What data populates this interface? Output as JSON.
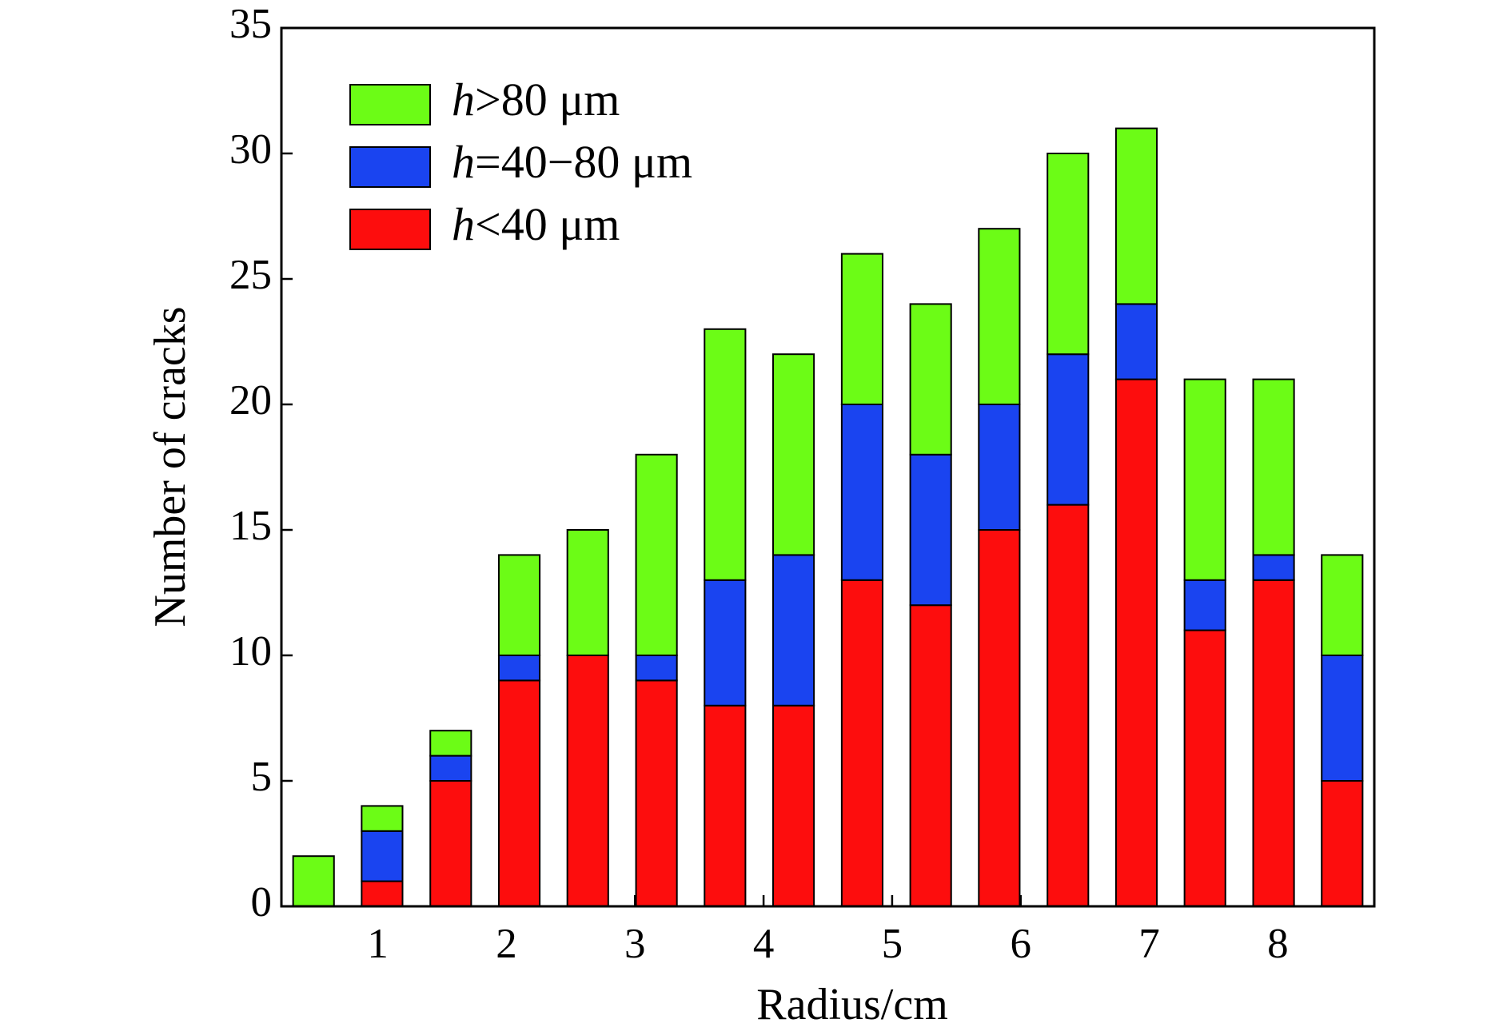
{
  "chart_data": {
    "type": "bar",
    "stacked": true,
    "x_label": "Radius/cm",
    "y_label": "Number of cracks",
    "x": [
      0.5,
      1.033,
      1.567,
      2.1,
      2.633,
      3.167,
      3.7,
      4.233,
      4.767,
      5.3,
      5.833,
      6.367,
      6.9,
      7.433,
      7.967,
      8.5
    ],
    "series": [
      {
        "name": "h>80 μm",
        "color": "#6cfc16",
        "values": [
          2,
          1,
          1,
          4,
          5,
          8,
          10,
          8,
          6,
          6,
          7,
          8,
          7,
          8,
          7,
          4
        ]
      },
      {
        "name": "h=40−80 μm",
        "color": "#1a44f0",
        "values": [
          0,
          2,
          1,
          1,
          0,
          1,
          5,
          6,
          7,
          6,
          5,
          6,
          3,
          2,
          1,
          5
        ]
      },
      {
        "name": "h<40 μm",
        "color": "#fd0d0d",
        "values": [
          0,
          1,
          5,
          9,
          10,
          9,
          8,
          8,
          13,
          12,
          15,
          16,
          21,
          11,
          13,
          5
        ]
      }
    ],
    "xlim": [
      0.25,
      8.75
    ],
    "xticks": [
      1,
      2,
      3,
      4,
      5,
      6,
      7,
      8
    ],
    "ylim": [
      0,
      35
    ],
    "yticks": [
      0,
      5,
      10,
      15,
      20,
      25,
      30,
      35
    ],
    "legend": "upper left"
  }
}
